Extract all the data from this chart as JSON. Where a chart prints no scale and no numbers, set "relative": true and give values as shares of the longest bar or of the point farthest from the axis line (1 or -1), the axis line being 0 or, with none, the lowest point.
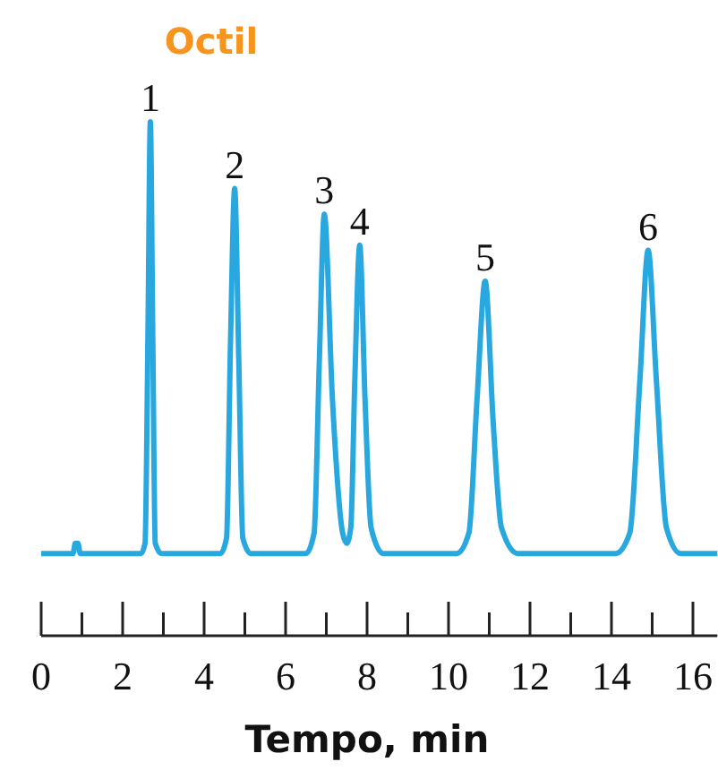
{
  "chart_data": {
    "type": "line",
    "title": "Octil",
    "xlabel": "Tempo, min",
    "relative": true,
    "marker": "none",
    "line_style": "solid",
    "grid": false,
    "xlim": [
      0,
      16.6
    ],
    "xticks": [
      0,
      {
        "value": 1,
        "label": null
      },
      2,
      {
        "value": 3,
        "label": null
      },
      4,
      {
        "value": 5,
        "label": null
      },
      6,
      {
        "value": 7,
        "label": null
      },
      8,
      {
        "value": 9,
        "label": null
      },
      10,
      {
        "value": 11,
        "label": null
      },
      12,
      {
        "value": 13,
        "label": null
      },
      14,
      {
        "value": 15,
        "label": null
      },
      16
    ],
    "series": [
      {
        "color": "#29a8e0",
        "x": [
          0,
          0.78,
          0.84,
          0.87,
          0.9,
          0.96,
          2.45,
          2.55,
          2.62,
          2.68,
          2.74,
          2.8,
          2.95,
          4.4,
          4.55,
          4.65,
          4.75,
          4.85,
          4.95,
          5.15,
          6.5,
          6.7,
          6.83,
          6.95,
          7.15,
          7.4,
          7.5,
          7.6,
          7.7,
          7.82,
          7.95,
          8.1,
          8.4,
          10.2,
          10.5,
          10.7,
          10.9,
          11.1,
          11.3,
          11.7,
          14.1,
          14.45,
          14.7,
          14.9,
          15.1,
          15.35,
          15.7,
          16.6
        ],
        "values": [
          0.16,
          0.16,
          0.18,
          0.18,
          0.18,
          0.16,
          0.16,
          0.18,
          0.58,
          1,
          0.58,
          0.18,
          0.16,
          0.16,
          0.19,
          0.58,
          0.87,
          0.54,
          0.19,
          0.16,
          0.16,
          0.2,
          0.54,
          0.82,
          0.46,
          0.2,
          0.18,
          0.21,
          0.5,
          0.76,
          0.46,
          0.21,
          0.16,
          0.16,
          0.2,
          0.46,
          0.69,
          0.41,
          0.21,
          0.16,
          0.16,
          0.2,
          0.5,
          0.75,
          0.5,
          0.21,
          0.16,
          0.16
        ]
      }
    ],
    "annotations": [
      {
        "text": "1",
        "x": 2.68,
        "y": 1
      },
      {
        "text": "2",
        "x": 4.75,
        "y": 0.87
      },
      {
        "text": "3",
        "x": 6.95,
        "y": 0.82
      },
      {
        "text": "4",
        "x": 7.82,
        "y": 0.76
      },
      {
        "text": "5",
        "x": 10.9,
        "y": 0.69
      },
      {
        "text": "6",
        "x": 14.9,
        "y": 0.75
      }
    ]
  }
}
